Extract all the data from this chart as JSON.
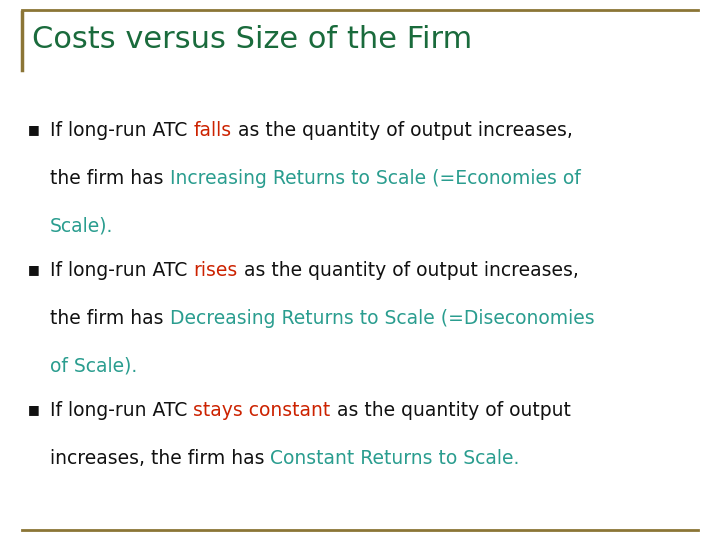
{
  "title": "Costs versus Size of the Firm",
  "title_color": "#1a6b3c",
  "background_color": "#ffffff",
  "border_color": "#8b7536",
  "bullet_color": "#111111",
  "text_color": "#111111",
  "red_color": "#cc2200",
  "teal_color": "#2a9d8f",
  "title_fontsize": 22,
  "body_fontsize": 13.5,
  "bullet_points": [
    {
      "lines": [
        [
          {
            "text": "If long-run ATC ",
            "color": "#111111"
          },
          {
            "text": "falls",
            "color": "#cc2200"
          },
          {
            "text": " as the quantity of output increases,",
            "color": "#111111"
          }
        ],
        [
          {
            "text": "the firm has ",
            "color": "#111111"
          },
          {
            "text": "Increasing Returns to Scale (=Economies of",
            "color": "#2a9d8f"
          }
        ],
        [
          {
            "text": "Scale).",
            "color": "#2a9d8f"
          }
        ]
      ]
    },
    {
      "lines": [
        [
          {
            "text": "If long-run ATC ",
            "color": "#111111"
          },
          {
            "text": "rises",
            "color": "#cc2200"
          },
          {
            "text": " as the quantity of output increases,",
            "color": "#111111"
          }
        ],
        [
          {
            "text": "the firm has ",
            "color": "#111111"
          },
          {
            "text": "Decreasing Returns to Scale (=Diseconomies",
            "color": "#2a9d8f"
          }
        ],
        [
          {
            "text": "of Scale).",
            "color": "#2a9d8f"
          }
        ]
      ]
    },
    {
      "lines": [
        [
          {
            "text": "If long-run ATC ",
            "color": "#111111"
          },
          {
            "text": "stays constant",
            "color": "#cc2200"
          },
          {
            "text": " as the quantity of output",
            "color": "#111111"
          }
        ],
        [
          {
            "text": "increases, the firm has ",
            "color": "#111111"
          },
          {
            "text": "Constant Returns to Scale.",
            "color": "#2a9d8f"
          }
        ]
      ]
    }
  ]
}
